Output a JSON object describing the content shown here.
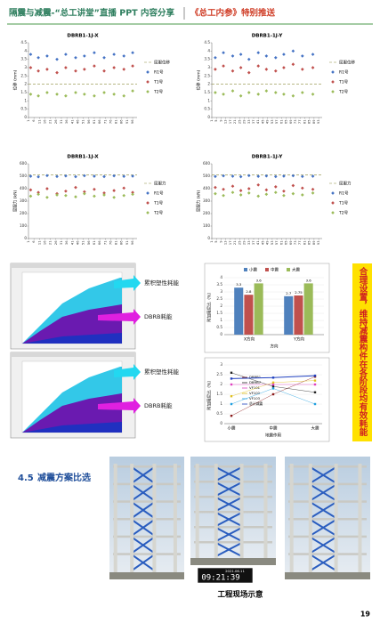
{
  "header": {
    "title": "隔震与减震-“总工讲堂”直播 PPT 内容分享",
    "subtitle": "《总工内参》特别推送"
  },
  "charts": [
    {
      "type": "scatter",
      "title": "DBRB1-1J-X",
      "ylabel": "位移 (mm)",
      "xlim": [
        1,
        100
      ],
      "xticks": [
        1,
        6,
        11,
        16,
        21,
        26,
        31,
        36,
        41,
        46,
        51,
        56,
        61,
        66,
        71,
        76,
        81,
        86,
        91,
        96
      ],
      "ylim": [
        0,
        4.5
      ],
      "yticks": [
        0,
        0.5,
        1,
        1.5,
        2,
        2.5,
        3,
        3.5,
        4,
        4.5
      ],
      "reference": {
        "name": "屈服位移",
        "value": 2.0,
        "color": "#8c8c3c"
      },
      "x": [
        3,
        10,
        18,
        27,
        35,
        44,
        52,
        61,
        70,
        79,
        88,
        96
      ],
      "series": [
        {
          "name": "R1号",
          "color": "#4472c4",
          "values": [
            3.8,
            3.6,
            3.7,
            3.5,
            3.8,
            3.6,
            3.7,
            3.9,
            3.6,
            3.8,
            3.7,
            3.9
          ]
        },
        {
          "name": "T1号",
          "color": "#c0504d",
          "values": [
            3.0,
            2.8,
            2.9,
            2.7,
            3.0,
            2.8,
            2.9,
            3.1,
            2.8,
            3.0,
            2.9,
            3.1
          ]
        },
        {
          "name": "T2号",
          "color": "#9bbb59",
          "values": [
            1.4,
            1.3,
            1.5,
            1.4,
            1.3,
            1.5,
            1.4,
            1.3,
            1.5,
            1.4,
            1.3,
            1.6
          ]
        }
      ]
    },
    {
      "type": "scatter",
      "title": "DBRB1-1J-Y",
      "ylabel": "位移 (mm)",
      "xlim": [
        1,
        96
      ],
      "xticks": [
        1,
        5,
        9,
        13,
        17,
        21,
        25,
        29,
        33,
        37,
        41,
        45,
        49,
        53,
        57,
        61,
        65,
        69,
        73,
        77,
        81,
        85,
        89,
        93
      ],
      "ylim": [
        0,
        4.5
      ],
      "yticks": [
        0,
        0.5,
        1,
        1.5,
        2,
        2.5,
        3,
        3.5,
        4,
        4.5
      ],
      "reference": {
        "name": "屈服位移",
        "value": 2.0,
        "color": "#8c8c3c"
      },
      "x": [
        4,
        11,
        19,
        26,
        33,
        41,
        48,
        56,
        63,
        71,
        79,
        88
      ],
      "series": [
        {
          "name": "R1号",
          "color": "#4472c4",
          "values": [
            3.6,
            3.9,
            3.7,
            3.8,
            3.5,
            3.9,
            3.7,
            3.6,
            3.8,
            4.0,
            3.7,
            3.8
          ]
        },
        {
          "name": "T1号",
          "color": "#c0504d",
          "values": [
            2.9,
            3.1,
            2.8,
            3.0,
            2.7,
            3.1,
            2.9,
            2.8,
            3.0,
            3.2,
            2.9,
            3.0
          ]
        },
        {
          "name": "T2号",
          "color": "#9bbb59",
          "values": [
            1.5,
            1.4,
            1.6,
            1.3,
            1.5,
            1.4,
            1.6,
            1.5,
            1.4,
            1.3,
            1.5,
            1.4
          ]
        }
      ]
    },
    {
      "type": "scatter",
      "title": "DBRB1-1J-X",
      "ylabel": "屈服力 (kN)",
      "xlim": [
        1,
        100
      ],
      "xticks": [
        1,
        6,
        11,
        16,
        21,
        26,
        31,
        36,
        41,
        46,
        51,
        56,
        61,
        66,
        71,
        76,
        81,
        86,
        91,
        96
      ],
      "ylim": [
        0,
        600
      ],
      "yticks": [
        0,
        100,
        200,
        300,
        400,
        500,
        600
      ],
      "reference": {
        "name": "屈服力",
        "value": 510,
        "color": "#8c8c3c"
      },
      "x": [
        3,
        10,
        18,
        27,
        35,
        44,
        52,
        61,
        70,
        79,
        88,
        96
      ],
      "series": [
        {
          "name": "R1号",
          "color": "#4472c4",
          "values": [
            500,
            495,
            505,
            498,
            502,
            496,
            504,
            500,
            497,
            503,
            499,
            501
          ]
        },
        {
          "name": "T1号",
          "color": "#c0504d",
          "values": [
            390,
            370,
            400,
            360,
            380,
            410,
            375,
            395,
            365,
            385,
            405,
            370
          ]
        },
        {
          "name": "T2号",
          "color": "#9bbb59",
          "values": [
            340,
            355,
            330,
            350,
            345,
            335,
            360,
            340,
            350,
            330,
            345,
            355
          ]
        }
      ]
    },
    {
      "type": "scatter",
      "title": "DBRB1-1J-Y",
      "ylabel": "屈服力 (kN)",
      "xlim": [
        1,
        96
      ],
      "xticks": [
        1,
        5,
        9,
        13,
        17,
        21,
        25,
        29,
        33,
        37,
        41,
        45,
        49,
        53,
        57,
        61,
        65,
        69,
        73,
        77,
        81,
        85,
        89,
        93
      ],
      "ylim": [
        0,
        600
      ],
      "yticks": [
        0,
        100,
        200,
        300,
        400,
        500,
        600
      ],
      "reference": {
        "name": "屈服力",
        "value": 510,
        "color": "#8c8c3c"
      },
      "x": [
        4,
        11,
        19,
        26,
        33,
        41,
        48,
        56,
        63,
        71,
        79,
        88
      ],
      "series": [
        {
          "name": "R1号",
          "color": "#4472c4",
          "values": [
            498,
            503,
            500,
            496,
            505,
            499,
            502,
            497,
            501,
            504,
            498,
            500
          ]
        },
        {
          "name": "T1号",
          "color": "#c0504d",
          "values": [
            410,
            395,
            420,
            385,
            400,
            430,
            390,
            415,
            380,
            425,
            405,
            395
          ]
        },
        {
          "name": "T2号",
          "color": "#9bbb59",
          "values": [
            360,
            345,
            370,
            350,
            365,
            340,
            355,
            370,
            345,
            360,
            350,
            365
          ]
        }
      ]
    },
    {
      "type": "bar",
      "xlabel": "方向",
      "ylabel": "附加阻尼比（%）",
      "categories": [
        "X方向",
        "Y方向"
      ],
      "ylim": [
        0,
        4
      ],
      "yticks": [
        0,
        0.5,
        1,
        1.5,
        2,
        2.5,
        3,
        3.5,
        4
      ],
      "series": [
        {
          "name": "小震",
          "color": "#4f81bd",
          "values": [
            3.3,
            2.7
          ]
        },
        {
          "name": "中震",
          "color": "#c0504d",
          "values": [
            2.8,
            2.75
          ]
        },
        {
          "name": "大震",
          "color": "#9bbb59",
          "values": [
            3.6,
            3.6
          ]
        }
      ]
    },
    {
      "type": "line",
      "xlabel": "地震作用",
      "ylabel": "附加阻尼比（%）",
      "categories": [
        "小震",
        "中震",
        "大震"
      ],
      "ylim": [
        0,
        3
      ],
      "yticks": [
        0,
        0.5,
        1,
        1.5,
        2,
        2.5,
        3
      ],
      "series": [
        {
          "name": "DBRB1",
          "color": "#8b1a1a",
          "values": [
            0.4,
            1.5,
            2.4
          ]
        },
        {
          "name": "DBRB7",
          "color": "#222222",
          "values": [
            2.6,
            1.9,
            1.6
          ]
        },
        {
          "name": "VF101",
          "color": "#e040c0",
          "values": [
            2.0,
            2.0,
            2.0
          ]
        },
        {
          "name": "VF102",
          "color": "#e0c020",
          "values": [
            1.4,
            2.1,
            2.2
          ]
        },
        {
          "name": "VF103",
          "color": "#20a0e0",
          "values": [
            1.0,
            1.8,
            1.0
          ]
        },
        {
          "name": "总计减震",
          "color": "#1f3fbf",
          "values": [
            2.3,
            2.35,
            2.45
          ]
        }
      ]
    }
  ],
  "screenshots": {
    "labels": [
      "累积塑性耗能",
      "DBRB耗能"
    ]
  },
  "callout": "合理设置，维持减震构件在各阶段均有效耗能",
  "section": {
    "number": "4.5",
    "title": "减震方案比选"
  },
  "photos": {
    "timestamp_date": "2021.06.11",
    "timestamp_time": "09:21:39",
    "caption": "工程现场示意"
  },
  "page_number": "19"
}
